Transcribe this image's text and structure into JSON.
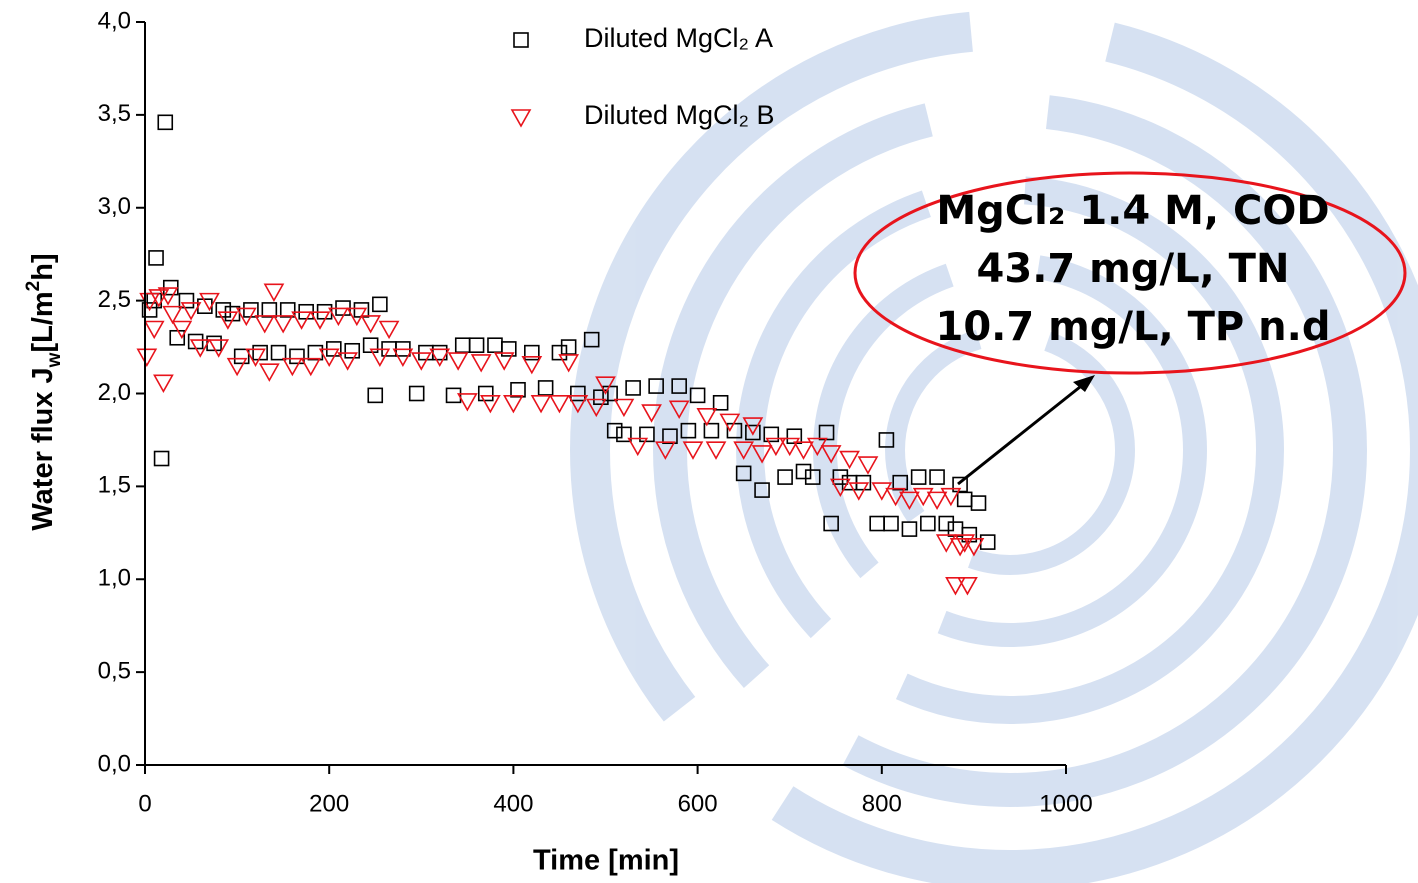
{
  "chart_data": {
    "type": "scatter",
    "x_label": "Time [min]",
    "y_label_parts": [
      "Water flux J",
      "w",
      "[L/m",
      "2",
      "h]"
    ],
    "annotation_lines": [
      "MgCl₂ 1.4 M, COD",
      "43.7 mg/L, TN",
      "10.7 mg/L, TP n.d"
    ],
    "xlim": [
      0,
      1000
    ],
    "ylim": [
      0,
      4
    ],
    "xticks": [
      0,
      200,
      400,
      600,
      800,
      1000
    ],
    "yticks": [
      {
        "value": 0,
        "label": "0,0"
      },
      {
        "value": 0.5,
        "label": "0,5"
      },
      {
        "value": 1,
        "label": "1,0"
      },
      {
        "value": 1.5,
        "label": "1,5"
      },
      {
        "value": 2,
        "label": "2,0"
      },
      {
        "value": 2.5,
        "label": "2,5"
      },
      {
        "value": 3,
        "label": "3,0"
      },
      {
        "value": 3.5,
        "label": "3,5"
      },
      {
        "value": 4,
        "label": "4,0"
      }
    ],
    "series": [
      {
        "name": "Diluted MgCl₂ A",
        "color": "#000000",
        "marker": "square",
        "x": [
          5,
          10,
          12,
          18,
          22,
          28,
          35,
          45,
          55,
          65,
          75,
          85,
          95,
          105,
          115,
          125,
          135,
          145,
          155,
          165,
          175,
          185,
          195,
          205,
          215,
          225,
          235,
          245,
          250,
          255,
          265,
          280,
          295,
          305,
          320,
          335,
          345,
          360,
          370,
          380,
          395,
          405,
          420,
          435,
          450,
          460,
          470,
          485,
          495,
          505,
          510,
          520,
          530,
          545,
          555,
          570,
          580,
          590,
          600,
          615,
          625,
          640,
          650,
          660,
          670,
          680,
          695,
          705,
          715,
          725,
          740,
          745,
          755,
          765,
          780,
          795,
          805,
          810,
          820,
          830,
          840,
          850,
          860,
          870,
          880,
          885,
          890,
          895,
          905,
          915
        ],
        "values": [
          2.45,
          2.5,
          2.73,
          1.65,
          3.46,
          2.57,
          2.3,
          2.5,
          2.28,
          2.47,
          2.27,
          2.45,
          2.43,
          2.2,
          2.45,
          2.22,
          2.45,
          2.22,
          2.45,
          2.2,
          2.44,
          2.22,
          2.44,
          2.24,
          2.46,
          2.23,
          2.45,
          2.26,
          1.99,
          2.48,
          2.24,
          2.24,
          2.0,
          2.22,
          2.22,
          1.99,
          2.26,
          2.26,
          2.0,
          2.26,
          2.24,
          2.02,
          2.22,
          2.03,
          2.22,
          2.25,
          2.0,
          2.29,
          1.98,
          2.0,
          1.8,
          1.78,
          2.03,
          1.78,
          2.04,
          1.77,
          2.04,
          1.8,
          1.99,
          1.8,
          1.95,
          1.8,
          1.57,
          1.79,
          1.48,
          1.78,
          1.55,
          1.77,
          1.58,
          1.55,
          1.79,
          1.3,
          1.55,
          1.52,
          1.52,
          1.3,
          1.75,
          1.3,
          1.52,
          1.27,
          1.55,
          1.3,
          1.55,
          1.3,
          1.27,
          1.51,
          1.43,
          1.24,
          1.41,
          1.2
        ]
      },
      {
        "name": "Diluted MgCl₂ B",
        "color": "#e8141c",
        "marker": "triangle-down",
        "x": [
          2,
          5,
          10,
          15,
          20,
          25,
          30,
          40,
          50,
          60,
          70,
          80,
          90,
          100,
          110,
          120,
          130,
          135,
          140,
          150,
          160,
          170,
          180,
          190,
          200,
          210,
          220,
          230,
          245,
          255,
          265,
          280,
          300,
          320,
          340,
          350,
          365,
          375,
          390,
          400,
          420,
          430,
          450,
          460,
          470,
          490,
          500,
          520,
          535,
          550,
          565,
          580,
          595,
          610,
          620,
          635,
          650,
          660,
          670,
          685,
          700,
          715,
          730,
          745,
          755,
          765,
          775,
          785,
          800,
          815,
          830,
          845,
          860,
          870,
          875,
          880,
          885,
          890,
          893,
          900
        ],
        "values": [
          2.2,
          2.5,
          2.35,
          2.52,
          2.06,
          2.53,
          2.43,
          2.35,
          2.45,
          2.25,
          2.5,
          2.25,
          2.4,
          2.15,
          2.42,
          2.2,
          2.38,
          2.12,
          2.55,
          2.38,
          2.15,
          2.4,
          2.15,
          2.4,
          2.2,
          2.42,
          2.18,
          2.42,
          2.38,
          2.2,
          2.35,
          2.2,
          2.18,
          2.2,
          2.18,
          1.96,
          2.17,
          1.95,
          2.18,
          1.95,
          2.16,
          1.95,
          1.95,
          2.17,
          1.95,
          1.93,
          2.05,
          1.93,
          1.72,
          1.9,
          1.7,
          1.92,
          1.7,
          1.88,
          1.7,
          1.85,
          1.7,
          1.83,
          1.68,
          1.72,
          1.72,
          1.7,
          1.72,
          1.68,
          1.5,
          1.65,
          1.48,
          1.62,
          1.48,
          1.45,
          1.43,
          1.45,
          1.43,
          1.2,
          1.45,
          0.97,
          1.18,
          1.2,
          0.97,
          1.18
        ]
      }
    ]
  }
}
